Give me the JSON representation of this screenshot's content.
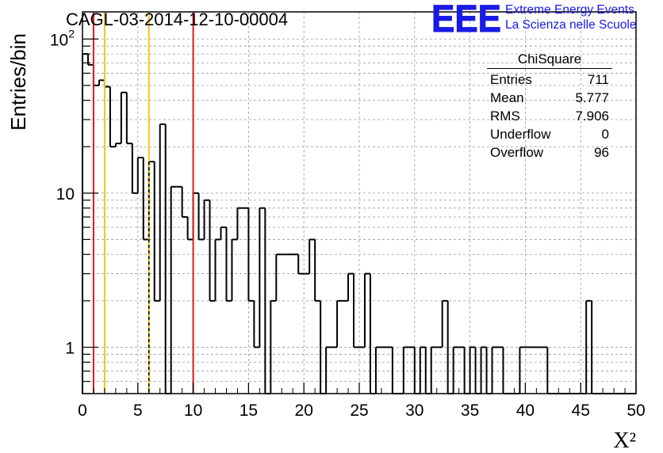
{
  "title": "CAGL-03-2014-12-10-00004",
  "logo": {
    "mark": "EEE",
    "line1": "Extreme Energy Events",
    "line2": "La Scienza nelle Scuole",
    "color": "#1a1ae6"
  },
  "stats": {
    "title": "ChiSquare",
    "rows": [
      {
        "label": "Entries",
        "value": "711"
      },
      {
        "label": "Mean",
        "value": "5.777"
      },
      {
        "label": "RMS",
        "value": "7.906"
      },
      {
        "label": "Underflow",
        "value": "0"
      },
      {
        "label": "Overflow",
        "value": "96"
      }
    ]
  },
  "chart_data": {
    "type": "histogram",
    "title": "CAGL-03-2014-12-10-00004",
    "xlabel": "X²",
    "ylabel": "Entries/bin",
    "xlim": [
      0,
      50
    ],
    "ylim": [
      0.5,
      150
    ],
    "log_y": true,
    "grid": true,
    "x_ticks": [
      0,
      5,
      10,
      15,
      20,
      25,
      30,
      35,
      40,
      45,
      50
    ],
    "y_ticks": [
      1,
      10,
      100
    ],
    "y_tick_labels": [
      "1",
      "10",
      "10²"
    ],
    "bin_width": 0.5,
    "bin_edges_start": 0,
    "values": [
      80,
      68,
      50,
      54,
      49,
      20,
      21,
      45,
      21,
      10,
      17,
      5,
      16,
      2,
      28,
      0,
      11,
      11,
      7,
      5,
      10,
      5,
      9,
      2,
      5,
      6,
      2,
      5,
      8,
      8,
      2,
      1,
      8,
      0,
      2,
      4,
      4,
      4,
      4,
      3,
      3,
      5,
      2,
      0,
      1,
      1,
      2,
      2,
      3,
      1,
      1,
      3,
      0,
      1,
      1,
      1,
      0,
      0,
      1,
      1,
      0,
      1,
      0,
      1,
      1,
      2,
      0,
      1,
      1,
      0,
      1,
      0,
      1,
      0,
      1,
      1,
      0,
      0,
      0,
      1,
      1,
      1,
      1,
      1,
      0,
      0,
      0,
      0,
      0,
      0,
      0,
      2,
      0,
      0,
      0,
      0,
      0,
      0,
      0,
      0
    ],
    "vertical_lines": [
      {
        "x": 1,
        "color": "#e31a1c",
        "style": "solid"
      },
      {
        "x": 2,
        "color": "#f5c518",
        "style": "solid"
      },
      {
        "x": 6,
        "color": "#f5c518",
        "style": "solid"
      },
      {
        "x": 6,
        "color": "#000000",
        "style": "dashed"
      },
      {
        "x": 10,
        "color": "#e31a1c",
        "style": "solid"
      }
    ]
  }
}
